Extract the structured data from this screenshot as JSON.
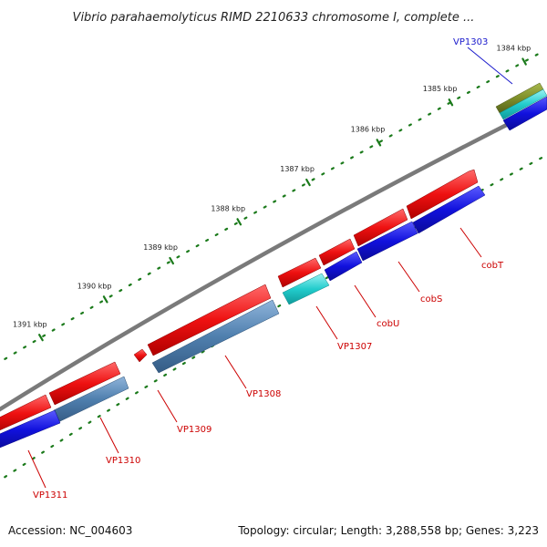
{
  "title": "Vibrio parahaemolyticus RIMD 2210633 chromosome I, complete ...",
  "footer": {
    "accession": "Accession: NC_004603",
    "stats": "Topology: circular; Length: 3,288,558 bp; Genes: 3,223"
  },
  "scale": {
    "ticks": [
      {
        "label": "1384 kbp",
        "kbp": 1384
      },
      {
        "label": "1385 kbp",
        "kbp": 1385
      },
      {
        "label": "1386 kbp",
        "kbp": 1386
      },
      {
        "label": "1387 kbp",
        "kbp": 1387
      },
      {
        "label": "1388 kbp",
        "kbp": 1388
      },
      {
        "label": "1389 kbp",
        "kbp": 1389
      },
      {
        "label": "1390 kbp",
        "kbp": 1390
      },
      {
        "label": "1391 kbp",
        "kbp": 1391
      }
    ]
  },
  "genes": [
    {
      "label": "VP1303",
      "label_color": "#1a1acc"
    },
    {
      "label": "cobT",
      "label_color": "#cc0000"
    },
    {
      "label": "cobS",
      "label_color": "#cc0000"
    },
    {
      "label": "cobU",
      "label_color": "#cc0000"
    },
    {
      "label": "VP1307",
      "label_color": "#cc0000"
    },
    {
      "label": "VP1308",
      "label_color": "#cc0000"
    },
    {
      "label": "VP1309",
      "label_color": "#cc0000"
    },
    {
      "label": "VP1310",
      "label_color": "#cc0000"
    },
    {
      "label": "VP1311",
      "label_color": "#cc0000"
    }
  ],
  "colors": {
    "backbone": "#7a7a7a",
    "cds_forward": "#ee1111",
    "cds_highlight_blue": "#1111dd",
    "cds_steel": "#4f7fae",
    "cds_cyan": "#22cccc",
    "cds_olive": "#7f8f2a",
    "tick_dots": "#1b7a1b"
  }
}
